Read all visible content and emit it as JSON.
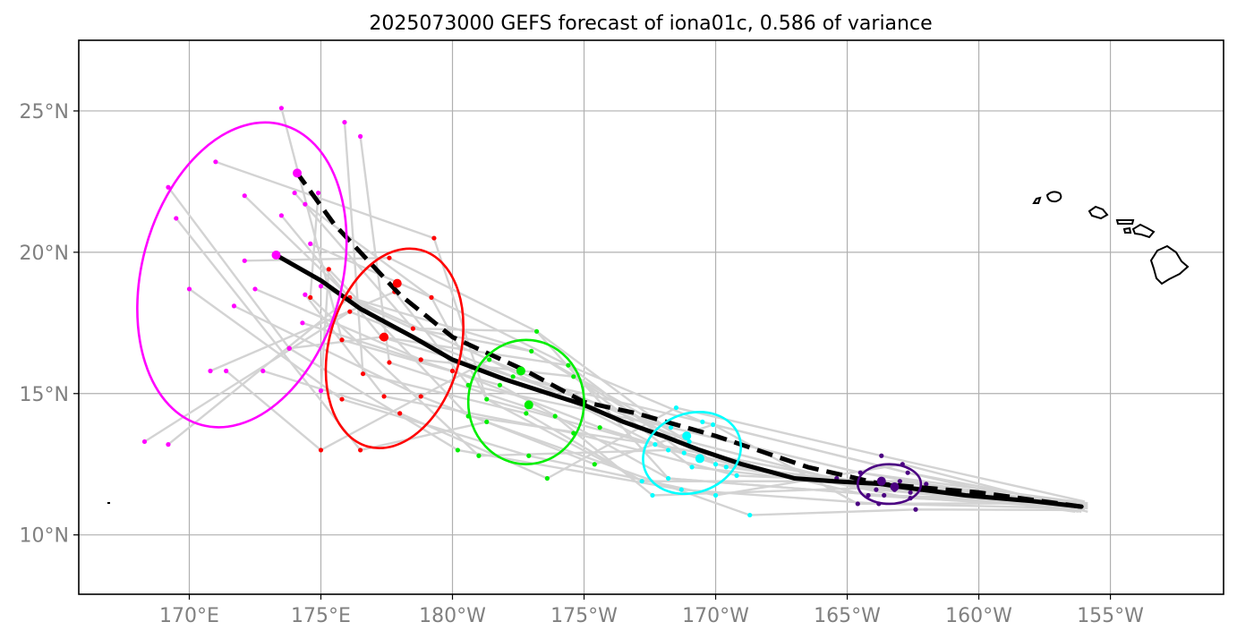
{
  "title": "2025073000 GEFS forecast of iona01c, 0.586 of variance",
  "colors": {
    "ensemble_tracks": "#d3d3d3",
    "grid": "#b0b0b0",
    "tick_text": "#808080",
    "mean_track": "#000000",
    "day1": "#4b0082",
    "day2": "#00ffff",
    "day3": "#00ee00",
    "day4": "#ff0000",
    "day5": "#ff00ff"
  },
  "chart_data": {
    "type": "map",
    "projection": "PlateCarree, central longitude 180",
    "extent_lon_east": [
      165.8,
      209.3
    ],
    "extent_lat": [
      7.9,
      27.5
    ],
    "xticks": [
      {
        "lon": 170,
        "label": "170°E"
      },
      {
        "lon": 175,
        "label": "175°E"
      },
      {
        "lon": 180,
        "label": "180°W"
      },
      {
        "lon": 185,
        "label": "175°W"
      },
      {
        "lon": 190,
        "label": "170°W"
      },
      {
        "lon": 195,
        "label": "165°W"
      },
      {
        "lon": 200,
        "label": "160°W"
      },
      {
        "lon": 205,
        "label": "155°W"
      }
    ],
    "yticks": [
      {
        "lat": 10,
        "label": "10°N"
      },
      {
        "lat": 15,
        "label": "15°N"
      },
      {
        "lat": 20,
        "label": "20°N"
      },
      {
        "lat": 25,
        "label": "25°N"
      }
    ],
    "grid": true,
    "mean_track_solid": [
      [
        203.9,
        11.0
      ],
      [
        202.0,
        11.2
      ],
      [
        199.5,
        11.4
      ],
      [
        197.0,
        11.7
      ],
      [
        196.3,
        11.8
      ],
      [
        194.5,
        11.9
      ],
      [
        193.0,
        12.0
      ],
      [
        191.0,
        12.5
      ],
      [
        189.4,
        13.0
      ],
      [
        188.0,
        13.5
      ],
      [
        186.5,
        14.0
      ],
      [
        185.0,
        14.6
      ],
      [
        182.0,
        15.5
      ],
      [
        180.0,
        16.2
      ],
      [
        178.5,
        17.0
      ],
      [
        176.5,
        18.0
      ],
      [
        175.0,
        19.0
      ],
      [
        173.3,
        19.9
      ]
    ],
    "mean_track_dashed": [
      [
        203.9,
        11.0
      ],
      [
        200.0,
        11.5
      ],
      [
        196.3,
        11.8
      ],
      [
        193.5,
        12.4
      ],
      [
        190.0,
        13.5
      ],
      [
        187.0,
        14.3
      ],
      [
        185.0,
        14.7
      ],
      [
        182.8,
        15.8
      ],
      [
        180.0,
        17.0
      ],
      [
        178.0,
        18.5
      ],
      [
        177.0,
        19.5
      ],
      [
        175.5,
        21.0
      ],
      [
        174.1,
        22.8
      ]
    ],
    "day_points": [
      {
        "day": 1,
        "color": "#4b0082",
        "mean": [
          196.8,
          11.7
        ],
        "dashed": [
          196.3,
          11.9
        ],
        "ellipse": {
          "center": [
            196.6,
            11.8
          ],
          "semi_axes_deg": [
            1.2,
            0.7
          ],
          "angle_deg": 0
        },
        "members": [
          [
            194.6,
            12.0
          ],
          [
            195.5,
            12.2
          ],
          [
            196.1,
            11.6
          ],
          [
            197.3,
            12.2
          ],
          [
            197.8,
            11.6
          ],
          [
            195.8,
            11.4
          ],
          [
            196.4,
            11.4
          ],
          [
            197.0,
            11.9
          ],
          [
            196.9,
            11.7
          ],
          [
            196.8,
            11.6
          ],
          [
            197.4,
            11.5
          ],
          [
            198.0,
            11.8
          ],
          [
            195.4,
            11.1
          ],
          [
            196.3,
            12.8
          ],
          [
            197.1,
            12.5
          ],
          [
            197.6,
            10.9
          ],
          [
            196.2,
            11.1
          ],
          [
            197.4,
            11.3
          ]
        ]
      },
      {
        "day": 2,
        "color": "#00ffff",
        "mean": [
          189.4,
          12.7
        ],
        "dashed": [
          188.9,
          13.5
        ],
        "ellipse": {
          "center": [
            189.1,
            12.9
          ],
          "semi_axes_deg": [
            1.9,
            1.4
          ],
          "angle_deg": -20
        },
        "members": [
          [
            187.7,
            13.2
          ],
          [
            188.3,
            13.8
          ],
          [
            189.0,
            13.3
          ],
          [
            189.5,
            14.0
          ],
          [
            190.0,
            12.5
          ],
          [
            188.8,
            12.9
          ],
          [
            188.2,
            12.0
          ],
          [
            187.2,
            11.9
          ],
          [
            187.6,
            11.4
          ],
          [
            189.1,
            12.4
          ],
          [
            190.4,
            12.4
          ],
          [
            190.8,
            12.1
          ],
          [
            189.9,
            13.9
          ],
          [
            188.5,
            14.5
          ],
          [
            190.0,
            11.4
          ],
          [
            191.3,
            10.7
          ],
          [
            188.7,
            11.6
          ],
          [
            188.2,
            13.0
          ]
        ]
      },
      {
        "day": 3,
        "color": "#00ee00",
        "mean": [
          182.9,
          14.6
        ],
        "dashed": [
          182.6,
          15.8
        ],
        "ellipse": {
          "center": [
            182.8,
            14.7
          ],
          "semi_axes_deg": [
            2.2,
            2.2
          ],
          "angle_deg": 0
        },
        "members": [
          [
            181.4,
            16.2
          ],
          [
            182.3,
            15.6
          ],
          [
            183.0,
            16.5
          ],
          [
            184.4,
            16.0
          ],
          [
            183.2,
            17.2
          ],
          [
            181.3,
            14.8
          ],
          [
            181.8,
            15.3
          ],
          [
            182.8,
            14.3
          ],
          [
            183.9,
            14.2
          ],
          [
            184.6,
            15.6
          ],
          [
            185.6,
            13.8
          ],
          [
            184.6,
            13.6
          ],
          [
            185.4,
            12.5
          ],
          [
            183.6,
            12.0
          ],
          [
            182.9,
            12.8
          ],
          [
            181.3,
            14.0
          ],
          [
            180.2,
            13.0
          ],
          [
            181.0,
            12.8
          ],
          [
            180.6,
            14.2
          ],
          [
            180.6,
            15.3
          ]
        ]
      },
      {
        "day": 4,
        "color": "#ff0000",
        "mean": [
          177.4,
          17.0
        ],
        "dashed": [
          177.9,
          18.9
        ],
        "ellipse": {
          "center": [
            177.8,
            16.6
          ],
          "semi_axes_deg": [
            2.5,
            3.6
          ],
          "angle_deg": 15
        },
        "members": [
          [
            176.1,
            18.4
          ],
          [
            177.3,
            17.0
          ],
          [
            178.5,
            17.3
          ],
          [
            179.2,
            18.4
          ],
          [
            177.6,
            19.8
          ],
          [
            179.3,
            20.5
          ],
          [
            175.8,
            16.9
          ],
          [
            176.6,
            15.7
          ],
          [
            177.6,
            16.1
          ],
          [
            178.8,
            16.2
          ],
          [
            180.0,
            15.8
          ],
          [
            177.4,
            14.9
          ],
          [
            178.8,
            14.9
          ],
          [
            178.0,
            14.3
          ],
          [
            175.8,
            14.8
          ],
          [
            176.5,
            13.0
          ],
          [
            173.8,
            16.6
          ],
          [
            174.6,
            18.4
          ],
          [
            175.3,
            19.4
          ],
          [
            177.8,
            18.6
          ],
          [
            175.0,
            13.0
          ],
          [
            176.1,
            17.9
          ]
        ]
      },
      {
        "day": 5,
        "color": "#ff00ff",
        "mean": [
          173.3,
          19.9
        ],
        "dashed": [
          174.1,
          22.8
        ],
        "ellipse": {
          "center": [
            172.0,
            19.2
          ],
          "semi_axes_deg": [
            3.8,
            5.5
          ],
          "angle_deg": 15
        },
        "members": [
          [
            172.1,
            22.0
          ],
          [
            173.5,
            21.3
          ],
          [
            174.0,
            22.1
          ],
          [
            174.6,
            20.3
          ],
          [
            172.1,
            19.7
          ],
          [
            171.0,
            23.2
          ],
          [
            173.5,
            25.1
          ],
          [
            175.9,
            24.6
          ],
          [
            176.5,
            24.1
          ],
          [
            172.5,
            18.7
          ],
          [
            174.3,
            17.5
          ],
          [
            174.4,
            18.5
          ],
          [
            171.7,
            18.1
          ],
          [
            172.8,
            15.8
          ],
          [
            170.0,
            18.7
          ],
          [
            169.5,
            21.2
          ],
          [
            169.2,
            22.3
          ],
          [
            174.9,
            22.1
          ],
          [
            175.0,
            15.1
          ],
          [
            170.8,
            15.8
          ],
          [
            171.4,
            15.8
          ],
          [
            168.3,
            13.3
          ],
          [
            169.2,
            13.2
          ],
          [
            173.8,
            16.6
          ],
          [
            175.0,
            18.8
          ],
          [
            174.4,
            21.7
          ]
        ]
      }
    ],
    "legend": "none"
  }
}
